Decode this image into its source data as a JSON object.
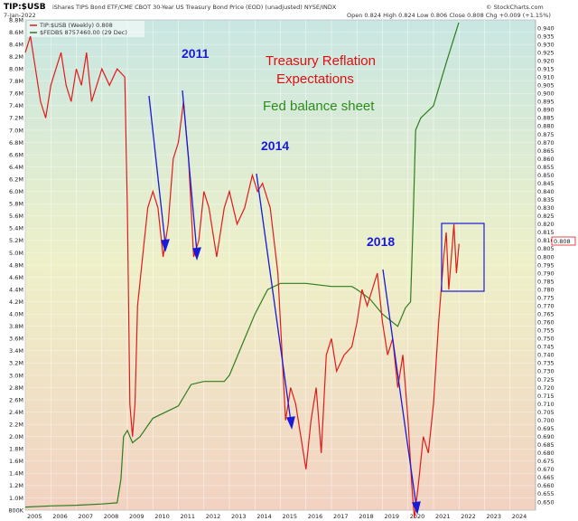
{
  "header": {
    "symbol": "TIP:$USB",
    "description": "iShares TIPS Bond ETF/CME CBOT 30-Year US Treasury Bond Price (EOD) (unadjusted)  NYSE/INDX",
    "date": "7-Jan-2022",
    "ohlc": "Open 0.824  High 0.824  Low 0.806  Close 0.808  Chg +0.009 (+1.15%)",
    "brand": "© StockCharts.com",
    "legend_main": "TIP:$USB (Weekly) 0.808",
    "legend_fed": "$FEDBS 8757460.00 (29 Dec)"
  },
  "annotations": {
    "label_2011": "2011",
    "label_2014": "2014",
    "label_2018": "2018",
    "title_line1": "Treasury Reflation",
    "title_line2": "Expectations",
    "fed_label": "Fed balance sheet"
  },
  "chart_data": {
    "type": "line",
    "x_range": [
      "2005-01",
      "2024-12"
    ],
    "x_tick_labels": [
      "2005",
      "2006",
      "2007",
      "2008",
      "2009",
      "2010",
      "2011",
      "2012",
      "2013",
      "2014",
      "2015",
      "2016",
      "2017",
      "2018",
      "2019",
      "2020",
      "2021",
      "2022",
      "2023",
      "2024"
    ],
    "left_axis": {
      "range": [
        800000,
        8800000
      ],
      "tick_labels": [
        "800K",
        "1.0M",
        "1.2M",
        "1.4M",
        "1.6M",
        "1.8M",
        "2.0M",
        "2.2M",
        "2.4M",
        "2.6M",
        "2.8M",
        "3.0M",
        "3.2M",
        "3.4M",
        "3.6M",
        "3.8M",
        "4.0M",
        "4.2M",
        "4.4M",
        "4.6M",
        "4.8M",
        "5.0M",
        "5.2M",
        "5.4M",
        "5.6M",
        "5.8M",
        "6.0M",
        "6.2M",
        "6.4M",
        "6.6M",
        "6.8M",
        "7.0M",
        "7.2M",
        "7.4M",
        "7.6M",
        "7.8M",
        "8.0M",
        "8.2M",
        "8.4M",
        "8.6M",
        "8.8M"
      ]
    },
    "right_axis": {
      "range": [
        0.645,
        0.945
      ],
      "tick_labels": [
        "0.650",
        "0.655",
        "0.660",
        "0.665",
        "0.670",
        "0.675",
        "0.680",
        "0.685",
        "0.690",
        "0.695",
        "0.700",
        "0.705",
        "0.710",
        "0.715",
        "0.720",
        "0.725",
        "0.730",
        "0.735",
        "0.740",
        "0.745",
        "0.750",
        "0.755",
        "0.760",
        "0.765",
        "0.770",
        "0.775",
        "0.780",
        "0.785",
        "0.790",
        "0.795",
        "0.800",
        "0.805",
        "0.810",
        "0.815",
        "0.820",
        "0.825",
        "0.830",
        "0.835",
        "0.840",
        "0.845",
        "0.850",
        "0.855",
        "0.860",
        "0.865",
        "0.870",
        "0.875",
        "0.880",
        "0.885",
        "0.890",
        "0.895",
        "0.900",
        "0.905",
        "0.910",
        "0.915",
        "0.920",
        "0.925",
        "0.930",
        "0.935",
        "0.940"
      ],
      "last_value_label": "0.808"
    },
    "series": [
      {
        "name": "TIP:$USB (Weekly) 0.808",
        "axis": "right",
        "color": "#e01b1b",
        "points": [
          [
            2005.0,
            0.925
          ],
          [
            2005.2,
            0.935
          ],
          [
            2005.4,
            0.915
          ],
          [
            2005.6,
            0.895
          ],
          [
            2005.8,
            0.885
          ],
          [
            2006.0,
            0.905
          ],
          [
            2006.2,
            0.915
          ],
          [
            2006.4,
            0.925
          ],
          [
            2006.6,
            0.905
          ],
          [
            2006.8,
            0.895
          ],
          [
            2007.0,
            0.915
          ],
          [
            2007.2,
            0.905
          ],
          [
            2007.4,
            0.925
          ],
          [
            2007.6,
            0.895
          ],
          [
            2007.8,
            0.905
          ],
          [
            2008.0,
            0.915
          ],
          [
            2008.3,
            0.905
          ],
          [
            2008.6,
            0.915
          ],
          [
            2008.9,
            0.91
          ],
          [
            2009.0,
            0.83
          ],
          [
            2009.1,
            0.71
          ],
          [
            2009.2,
            0.69
          ],
          [
            2009.3,
            0.71
          ],
          [
            2009.4,
            0.77
          ],
          [
            2009.6,
            0.8
          ],
          [
            2009.8,
            0.83
          ],
          [
            2010.0,
            0.84
          ],
          [
            2010.2,
            0.83
          ],
          [
            2010.4,
            0.8
          ],
          [
            2010.6,
            0.82
          ],
          [
            2010.8,
            0.86
          ],
          [
            2011.0,
            0.87
          ],
          [
            2011.2,
            0.895
          ],
          [
            2011.4,
            0.86
          ],
          [
            2011.6,
            0.8
          ],
          [
            2011.8,
            0.81
          ],
          [
            2012.0,
            0.84
          ],
          [
            2012.2,
            0.83
          ],
          [
            2012.5,
            0.8
          ],
          [
            2012.8,
            0.83
          ],
          [
            2013.0,
            0.84
          ],
          [
            2013.3,
            0.82
          ],
          [
            2013.6,
            0.83
          ],
          [
            2013.9,
            0.85
          ],
          [
            2014.1,
            0.84
          ],
          [
            2014.3,
            0.845
          ],
          [
            2014.6,
            0.83
          ],
          [
            2014.9,
            0.79
          ],
          [
            2015.0,
            0.76
          ],
          [
            2015.2,
            0.7
          ],
          [
            2015.4,
            0.72
          ],
          [
            2015.6,
            0.71
          ],
          [
            2015.8,
            0.69
          ],
          [
            2016.0,
            0.67
          ],
          [
            2016.2,
            0.7
          ],
          [
            2016.4,
            0.72
          ],
          [
            2016.6,
            0.68
          ],
          [
            2016.8,
            0.74
          ],
          [
            2017.0,
            0.75
          ],
          [
            2017.2,
            0.73
          ],
          [
            2017.5,
            0.74
          ],
          [
            2017.8,
            0.745
          ],
          [
            2018.0,
            0.76
          ],
          [
            2018.2,
            0.78
          ],
          [
            2018.4,
            0.77
          ],
          [
            2018.6,
            0.78
          ],
          [
            2018.8,
            0.79
          ],
          [
            2019.0,
            0.76
          ],
          [
            2019.2,
            0.74
          ],
          [
            2019.4,
            0.75
          ],
          [
            2019.6,
            0.72
          ],
          [
            2019.8,
            0.74
          ],
          [
            2020.0,
            0.7
          ],
          [
            2020.15,
            0.66
          ],
          [
            2020.25,
            0.64
          ],
          [
            2020.4,
            0.66
          ],
          [
            2020.6,
            0.69
          ],
          [
            2020.8,
            0.68
          ],
          [
            2021.0,
            0.71
          ],
          [
            2021.2,
            0.76
          ],
          [
            2021.4,
            0.8
          ],
          [
            2021.5,
            0.815
          ],
          [
            2021.6,
            0.78
          ],
          [
            2021.7,
            0.8
          ],
          [
            2021.8,
            0.82
          ],
          [
            2021.9,
            0.79
          ],
          [
            2022.0,
            0.808
          ]
        ]
      },
      {
        "name": "$FEDBS 8757460.00 (29 Dec)",
        "axis": "left",
        "color": "#2e7d1e",
        "points": [
          [
            2005.0,
            850000
          ],
          [
            2006.0,
            870000
          ],
          [
            2007.0,
            880000
          ],
          [
            2008.0,
            900000
          ],
          [
            2008.6,
            920000
          ],
          [
            2008.75,
            1300000
          ],
          [
            2008.85,
            2000000
          ],
          [
            2009.0,
            2100000
          ],
          [
            2009.2,
            1900000
          ],
          [
            2009.5,
            2000000
          ],
          [
            2010.0,
            2300000
          ],
          [
            2011.0,
            2500000
          ],
          [
            2011.5,
            2850000
          ],
          [
            2012.0,
            2900000
          ],
          [
            2012.8,
            2900000
          ],
          [
            2013.0,
            3000000
          ],
          [
            2013.5,
            3500000
          ],
          [
            2014.0,
            4000000
          ],
          [
            2014.5,
            4400000
          ],
          [
            2015.0,
            4500000
          ],
          [
            2016.0,
            4500000
          ],
          [
            2017.0,
            4450000
          ],
          [
            2017.8,
            4450000
          ],
          [
            2018.0,
            4400000
          ],
          [
            2018.5,
            4250000
          ],
          [
            2019.0,
            4000000
          ],
          [
            2019.6,
            3800000
          ],
          [
            2019.9,
            4100000
          ],
          [
            2020.1,
            4200000
          ],
          [
            2020.2,
            5500000
          ],
          [
            2020.3,
            7000000
          ],
          [
            2020.5,
            7200000
          ],
          [
            2021.0,
            7400000
          ],
          [
            2021.5,
            8100000
          ],
          [
            2021.99,
            8757460
          ]
        ]
      }
    ]
  }
}
